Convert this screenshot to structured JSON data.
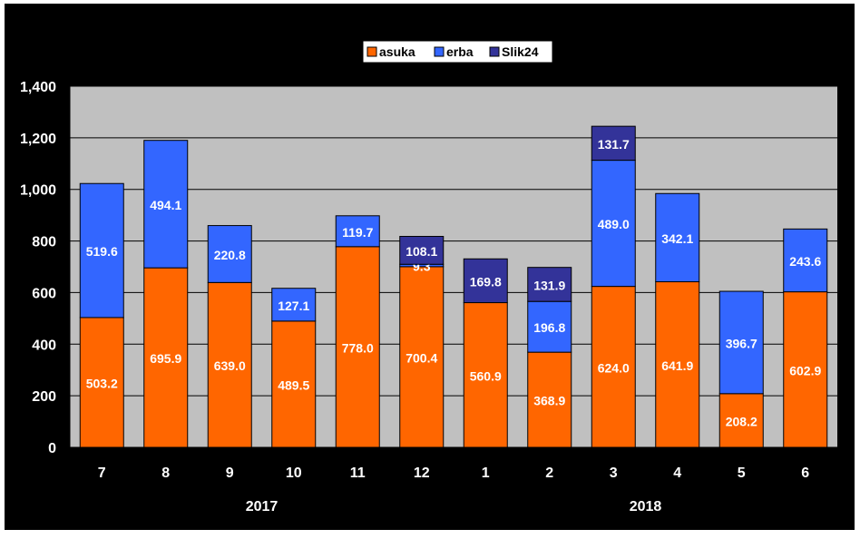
{
  "chart_data": {
    "type": "bar",
    "stacked": true,
    "categories": [
      "7",
      "8",
      "9",
      "10",
      "11",
      "12",
      "1",
      "2",
      "3",
      "4",
      "5",
      "6"
    ],
    "year_groups": [
      {
        "label": "2017",
        "from": 0,
        "to": 5
      },
      {
        "label": "2018",
        "from": 6,
        "to": 11
      }
    ],
    "series": [
      {
        "name": "asuka",
        "color": "#FF6600",
        "values": [
          503.2,
          695.9,
          639.0,
          489.5,
          778.0,
          700.4,
          560.9,
          368.9,
          624.0,
          641.9,
          208.2,
          602.9
        ],
        "labels": [
          "503.2",
          "695.9",
          "639.0",
          "489.5",
          "778.0",
          "700.4",
          "560.9",
          "368.9",
          "624.0",
          "641.9",
          "208.2",
          "602.9"
        ]
      },
      {
        "name": "erba",
        "color": "#3366FF",
        "values": [
          519.6,
          494.1,
          220.8,
          127.1,
          119.7,
          9.3,
          null,
          196.8,
          489.0,
          342.1,
          396.7,
          243.6
        ],
        "labels": [
          "519.6",
          "494.1",
          "220.8",
          "127.1",
          "119.7",
          "9.3",
          null,
          "196.8",
          "489.0",
          "342.1",
          "396.7",
          "243.6"
        ]
      },
      {
        "name": "Slik24",
        "color": "#333399",
        "values": [
          null,
          null,
          null,
          null,
          null,
          108.1,
          169.8,
          131.9,
          131.7,
          null,
          null,
          null
        ],
        "labels": [
          null,
          null,
          null,
          null,
          null,
          "108.1",
          "169.8",
          "131.9",
          "131.7",
          null,
          null,
          null
        ]
      }
    ],
    "ylim": [
      0,
      1400
    ],
    "yticks": [
      0,
      200,
      400,
      600,
      800,
      1000,
      1200,
      1400
    ],
    "ytick_labels": [
      "0",
      "200",
      "400",
      "600",
      "800",
      "1,000",
      "1,200",
      "1,400"
    ],
    "grid": true,
    "legend_position": "top-center",
    "plot_background": "#C0C0C0",
    "figure_background": "#000000",
    "text_color": "#FFFFFF",
    "title": "",
    "xlabel": "",
    "ylabel": ""
  }
}
